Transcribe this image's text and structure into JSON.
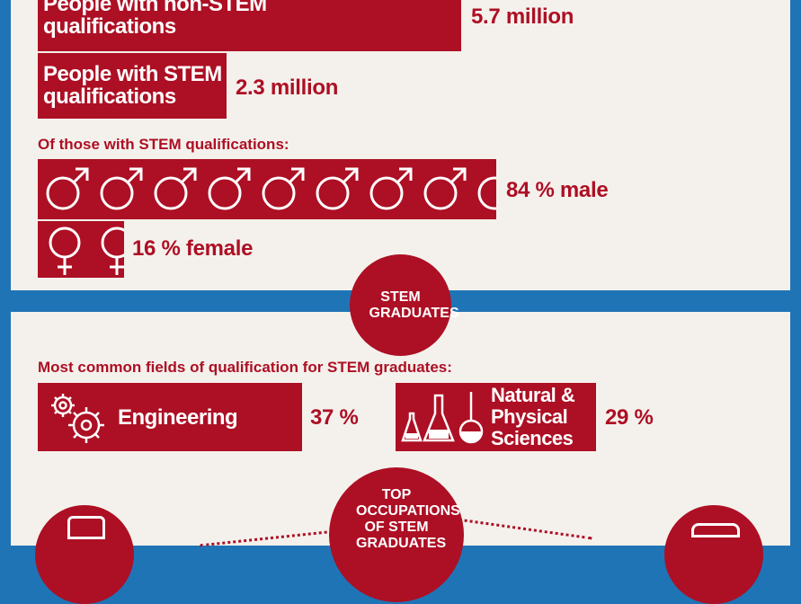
{
  "stats": {
    "non_stem": {
      "label": "People with non-STEM qualifications",
      "value": "5.7 million"
    },
    "stem": {
      "label": "People with STEM qualifications",
      "value": "2.3 million"
    }
  },
  "gender": {
    "heading": "Of those with STEM qualifications:",
    "male": "84 % male",
    "female": "16 % female",
    "male_share": 84,
    "female_share": 16
  },
  "graduates": {
    "badge": "STEM GRADUATES",
    "heading": "Most common fields of qualification for STEM graduates:",
    "fields": [
      {
        "label": "Engineering",
        "value": "37 %",
        "icon": "gears-icon"
      },
      {
        "label": "Natural & Physical Sciences",
        "value": "29 %",
        "icon": "flasks-icon"
      }
    ]
  },
  "occupations": {
    "badge": "TOP OCCUPATIONS OF STEM GRADUATES"
  },
  "colors": {
    "accent": "#ad0f24",
    "background": "#f4f1ec",
    "frame": "#1f74b6"
  }
}
